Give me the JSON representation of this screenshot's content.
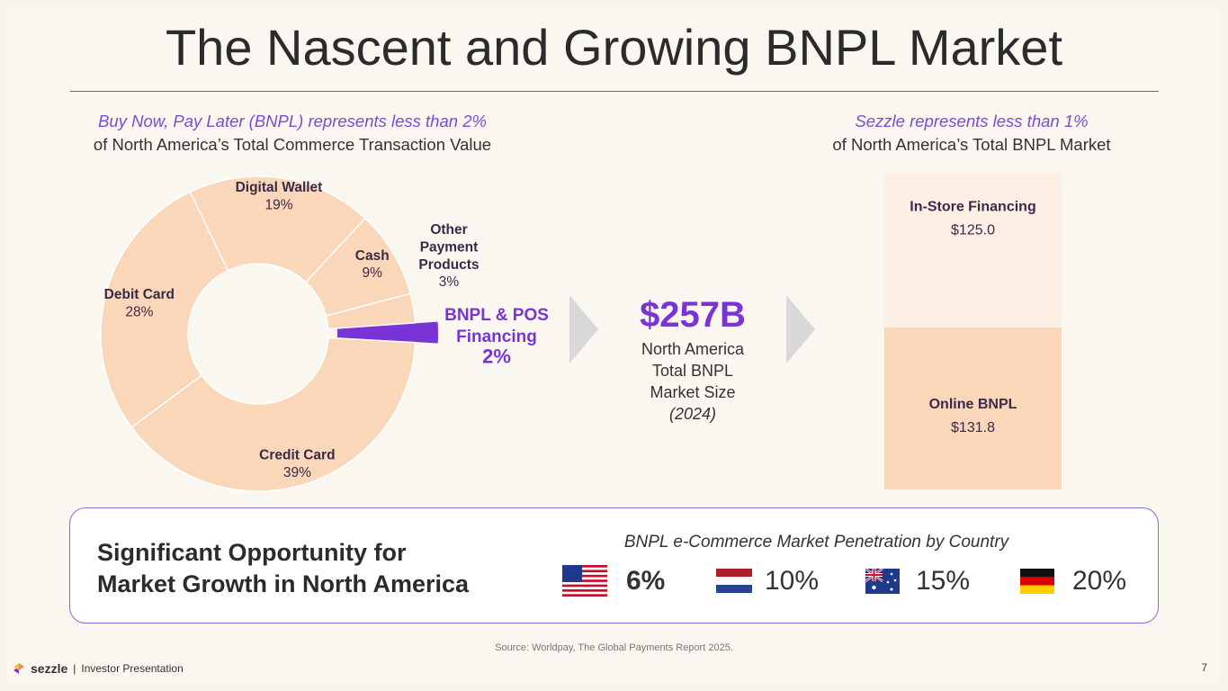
{
  "title": "The Nascent and Growing BNPL Market",
  "left_header": {
    "emphasis": "Buy Now, Pay Later (BNPL) represents less than 2%",
    "sub": "of North America’s Total Commerce Transaction Value"
  },
  "right_header": {
    "emphasis": "Sezzle represents less than 1%",
    "sub": "of North America’s Total BNPL Market"
  },
  "middle": {
    "value": "$257B",
    "desc_lines": [
      "North America",
      "Total BNPL",
      "Market Size"
    ],
    "year": "(2024)"
  },
  "chart_data": [
    {
      "type": "pie",
      "variant": "donut",
      "slices": [
        {
          "label": "Credit Card",
          "value": 39,
          "display": "39%"
        },
        {
          "label": "Debit Card",
          "value": 28,
          "display": "28%"
        },
        {
          "label": "Digital Wallet",
          "value": 19,
          "display": "19%"
        },
        {
          "label": "Cash",
          "value": 9,
          "display": "9%"
        },
        {
          "label_lines": [
            "Other",
            "Payment",
            "Products"
          ],
          "label": "Other Payment Products",
          "value": 3,
          "display": "3%"
        },
        {
          "label_lines": [
            "BNPL & POS",
            "Financing"
          ],
          "label": "BNPL & POS Financing",
          "value": 2,
          "display": "2%",
          "highlight": true
        }
      ],
      "colors": {
        "slice": "#f9d7b8",
        "highlight": "#7a34d6",
        "border": "#ffffff"
      }
    },
    {
      "type": "bar",
      "variant": "stacked",
      "categories": [
        "North America Total BNPL"
      ],
      "series": [
        {
          "name": "Online BNPL",
          "values": [
            131.8
          ],
          "display": "$131.8",
          "color": "#f9d7b8"
        },
        {
          "name": "In-Store Financing",
          "values": [
            125.0
          ],
          "display": "$125.0",
          "color": "#fcf0e4"
        }
      ]
    }
  ],
  "opportunity": {
    "title_lines": [
      "Significant Opportunity for",
      "Market Growth in North America"
    ],
    "subtitle": "BNPL e-Commerce Market Penetration by Country",
    "countries": [
      {
        "flag": "us-flag-icon",
        "value": "6%",
        "bold": true
      },
      {
        "flag": "netherlands-flag-icon",
        "value": "10%"
      },
      {
        "flag": "australia-flag-icon",
        "value": "15%"
      },
      {
        "flag": "germany-flag-icon",
        "value": "20%"
      }
    ]
  },
  "source": "Source: Worldpay, The Global Payments Report 2025.",
  "footer": {
    "brand": "sezzle",
    "separator": "|",
    "label": "Investor Presentation",
    "page": "7"
  },
  "accent": "#7a34d6"
}
